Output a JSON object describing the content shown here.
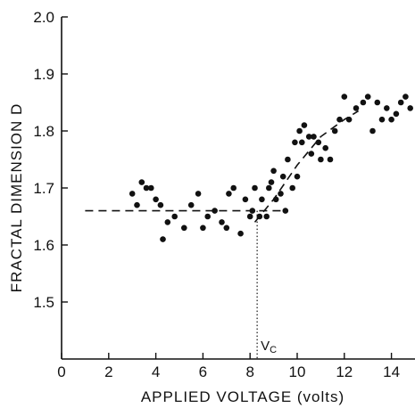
{
  "chart_data": {
    "type": "scatter",
    "title": "",
    "xlabel": "APPLIED VOLTAGE (volts)",
    "ylabel": "FRACTAL DIMENSION  D",
    "xlim": [
      0,
      15
    ],
    "ylim": [
      1.4,
      2.0
    ],
    "x_ticks": [
      0,
      2,
      4,
      6,
      8,
      10,
      12,
      14
    ],
    "y_ticks": [
      1.5,
      1.6,
      1.7,
      1.8,
      1.9,
      2.0
    ],
    "x_tick_labels": [
      "0",
      "2",
      "4",
      "6",
      "8",
      "10",
      "12",
      "14"
    ],
    "y_tick_labels": [
      "1.5",
      "1.6",
      "1.7",
      "1.8",
      "1.9",
      "2.0"
    ],
    "grid": false,
    "series": [
      {
        "points": [
          [
            3.0,
            1.69
          ],
          [
            3.2,
            1.67
          ],
          [
            3.4,
            1.71
          ],
          [
            3.6,
            1.7
          ],
          [
            3.8,
            1.7
          ],
          [
            4.0,
            1.68
          ],
          [
            4.2,
            1.67
          ],
          [
            4.3,
            1.61
          ],
          [
            4.5,
            1.64
          ],
          [
            4.8,
            1.65
          ],
          [
            5.2,
            1.63
          ],
          [
            5.5,
            1.67
          ],
          [
            5.8,
            1.69
          ],
          [
            6.0,
            1.63
          ],
          [
            6.2,
            1.65
          ],
          [
            6.5,
            1.66
          ],
          [
            6.8,
            1.64
          ],
          [
            7.0,
            1.63
          ],
          [
            7.1,
            1.69
          ],
          [
            7.3,
            1.7
          ],
          [
            7.6,
            1.62
          ],
          [
            7.8,
            1.68
          ],
          [
            8.0,
            1.65
          ],
          [
            8.1,
            1.66
          ],
          [
            8.2,
            1.7
          ],
          [
            8.4,
            1.65
          ],
          [
            8.5,
            1.68
          ],
          [
            8.7,
            1.65
          ],
          [
            8.8,
            1.7
          ],
          [
            8.9,
            1.71
          ],
          [
            9.0,
            1.73
          ],
          [
            9.1,
            1.68
          ],
          [
            9.3,
            1.69
          ],
          [
            9.4,
            1.72
          ],
          [
            9.5,
            1.66
          ],
          [
            9.6,
            1.75
          ],
          [
            9.8,
            1.7
          ],
          [
            9.9,
            1.78
          ],
          [
            10.0,
            1.72
          ],
          [
            10.1,
            1.8
          ],
          [
            10.2,
            1.78
          ],
          [
            10.3,
            1.81
          ],
          [
            10.5,
            1.79
          ],
          [
            10.6,
            1.76
          ],
          [
            10.7,
            1.79
          ],
          [
            10.9,
            1.78
          ],
          [
            11.0,
            1.75
          ],
          [
            11.2,
            1.77
          ],
          [
            11.4,
            1.75
          ],
          [
            11.6,
            1.8
          ],
          [
            11.8,
            1.82
          ],
          [
            12.0,
            1.86
          ],
          [
            12.2,
            1.82
          ],
          [
            12.5,
            1.84
          ],
          [
            12.8,
            1.85
          ],
          [
            13.0,
            1.86
          ],
          [
            13.2,
            1.8
          ],
          [
            13.4,
            1.85
          ],
          [
            13.6,
            1.82
          ],
          [
            13.8,
            1.84
          ],
          [
            14.0,
            1.82
          ],
          [
            14.2,
            1.83
          ],
          [
            14.4,
            1.85
          ],
          [
            14.6,
            1.86
          ],
          [
            14.8,
            1.84
          ]
        ]
      }
    ],
    "fits": [
      {
        "style": "dashed",
        "points": [
          [
            1.0,
            1.66
          ],
          [
            9.6,
            1.66
          ]
        ]
      },
      {
        "style": "dashed",
        "points": [
          [
            8.2,
            1.64
          ],
          [
            9.0,
            1.68
          ],
          [
            10.0,
            1.74
          ],
          [
            11.0,
            1.79
          ],
          [
            12.0,
            1.82
          ],
          [
            12.6,
            1.835
          ]
        ]
      }
    ],
    "annotations": [
      {
        "text": "V",
        "subscript": "C",
        "x": 8.3,
        "marker_line": "dotted-vertical",
        "y_from": 1.4,
        "y_to": 1.66
      }
    ]
  }
}
